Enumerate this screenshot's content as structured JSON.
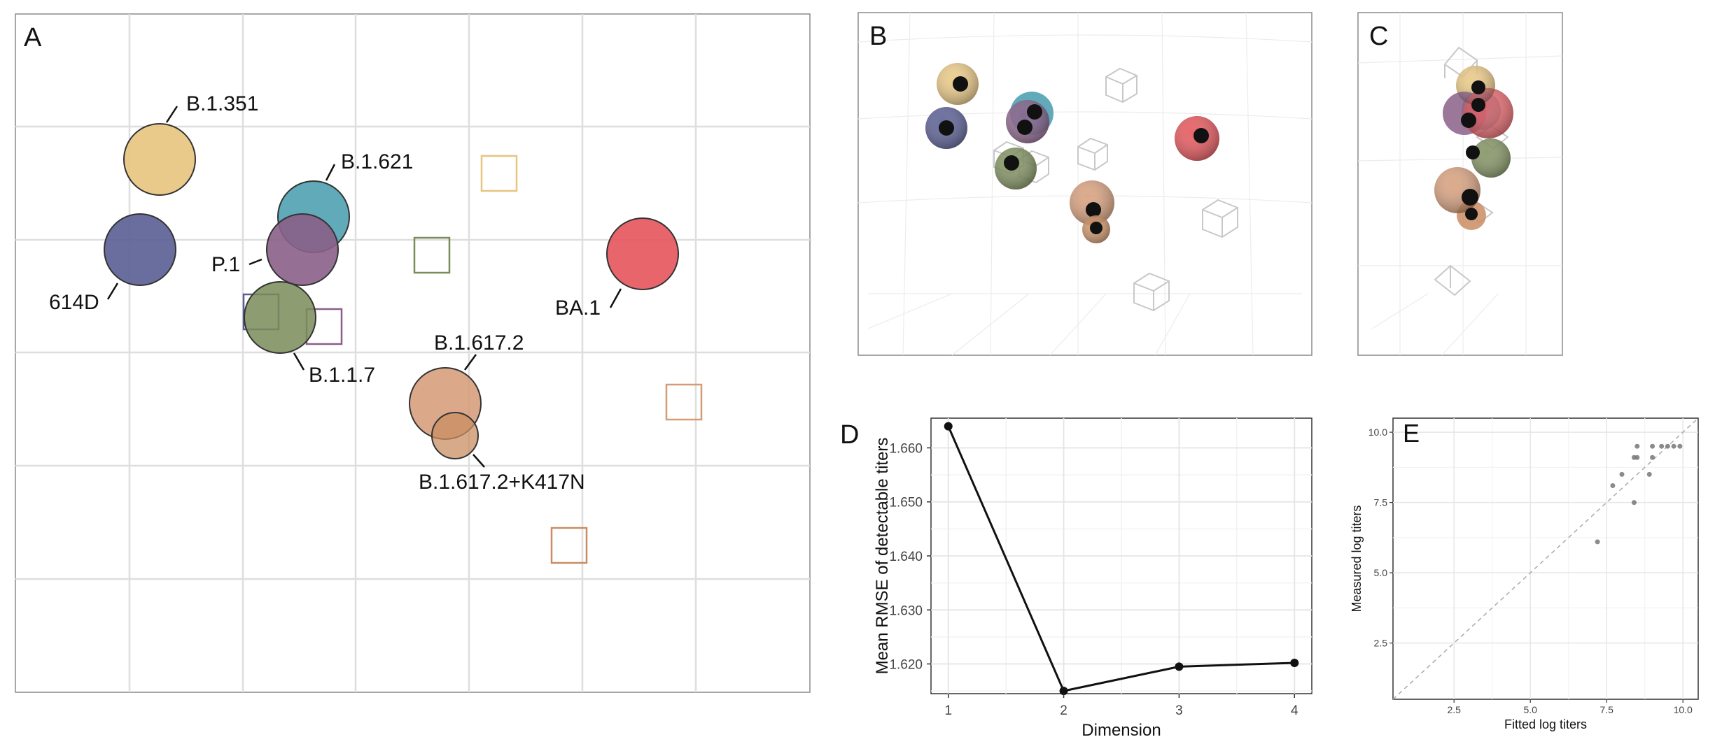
{
  "panel_labels": {
    "a": "A",
    "b": "B",
    "c": "C",
    "d": "D",
    "e": "E"
  },
  "colors": {
    "614D": "#5a5e93",
    "B.1.351": "#e8c47e",
    "B.1.621": "#4fa1b3",
    "P.1": "#8a5f88",
    "B.1.1.7": "#7a8c58",
    "B.1.617.2": "#d59a76",
    "B.1.617.2+K417N": "#c98d62",
    "BA.1": "#e5555b"
  },
  "panel_a": {
    "antigens": [
      {
        "name": "614D",
        "label": "614D"
      },
      {
        "name": "B.1.351",
        "label": "B.1.351"
      },
      {
        "name": "B.1.621",
        "label": "B.1.621"
      },
      {
        "name": "P.1",
        "label": "P.1"
      },
      {
        "name": "B.1.1.7",
        "label": "B.1.1.7"
      },
      {
        "name": "B.1.617.2",
        "label": "B.1.617.2"
      },
      {
        "name": "B.1.617.2+K417N",
        "label": "B.1.617.2+K417N"
      },
      {
        "name": "BA.1",
        "label": "BA.1"
      }
    ],
    "sera": [
      "B.1.351",
      "B.1.1.7",
      "614D",
      "P.1",
      "B.1.617.2",
      "B.1.617.2+K417N"
    ]
  },
  "chart_data": [
    {
      "type": "line",
      "panel": "D",
      "xlabel": "Dimension",
      "ylabel": "Mean RMSE of detectable titers",
      "x": [
        1,
        2,
        3,
        4
      ],
      "y": [
        1.664,
        1.615,
        1.6195,
        1.6202
      ],
      "xticks": [
        "1",
        "2",
        "3",
        "4"
      ],
      "yticks": [
        "1.620",
        "1.630",
        "1.640",
        "1.650",
        "1.660"
      ],
      "xlim": [
        0.85,
        4.15
      ],
      "ylim": [
        1.6145,
        1.6655
      ],
      "grid": true
    },
    {
      "type": "scatter",
      "panel": "E",
      "xlabel": "Fitted log titers",
      "ylabel": "Measured log titers",
      "points": [
        {
          "x": 7.2,
          "y": 6.1
        },
        {
          "x": 7.7,
          "y": 8.1
        },
        {
          "x": 8.0,
          "y": 8.5
        },
        {
          "x": 8.4,
          "y": 7.5
        },
        {
          "x": 8.4,
          "y": 9.1
        },
        {
          "x": 8.5,
          "y": 9.1
        },
        {
          "x": 8.5,
          "y": 9.5
        },
        {
          "x": 8.9,
          "y": 8.5
        },
        {
          "x": 9.0,
          "y": 9.1
        },
        {
          "x": 9.0,
          "y": 9.5
        },
        {
          "x": 9.3,
          "y": 9.5
        },
        {
          "x": 9.5,
          "y": 9.5
        },
        {
          "x": 9.7,
          "y": 9.5
        },
        {
          "x": 9.9,
          "y": 9.5
        }
      ],
      "xticks": [
        "2.5",
        "5.0",
        "7.5",
        "10.0"
      ],
      "yticks": [
        "2.5",
        "5.0",
        "7.5",
        "10.0"
      ],
      "xlim": [
        0.5,
        10.5
      ],
      "ylim": [
        0.5,
        10.5
      ],
      "diagonal": true,
      "grid": true
    }
  ]
}
